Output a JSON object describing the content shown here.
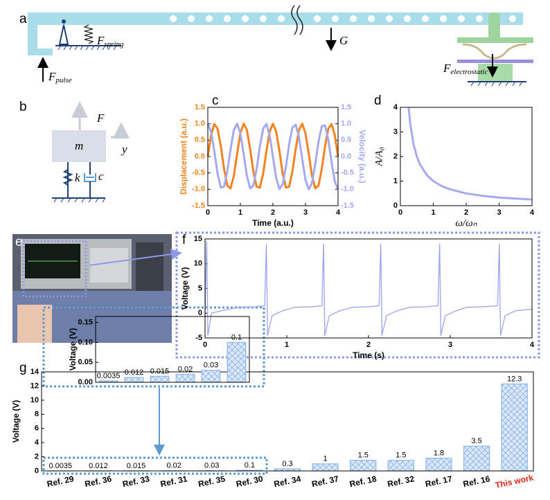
{
  "figure": {
    "panel_a": {
      "label": "a",
      "forces": [
        {
          "symbol": "F",
          "subscript": "spring"
        },
        {
          "symbol": "G"
        },
        {
          "symbol": "F",
          "subscript": "pulse"
        },
        {
          "symbol": "F",
          "subscript": "electrostatic"
        }
      ]
    },
    "panel_b": {
      "label": "b",
      "symbols": {
        "force": "F",
        "mass": "m",
        "displacement": "y",
        "stiffness": "k",
        "damping": "c"
      }
    },
    "panel_e": {
      "label": "e"
    }
  },
  "chart_data": [
    {
      "type": "line",
      "panel": "c",
      "xlabel": "Time (a.u.)",
      "ylabel": "Displacement (a.u.)",
      "y2label": "Velocity (a.u.)",
      "x": [
        0,
        0.1,
        0.2,
        0.3,
        0.4,
        0.5,
        0.6,
        0.7,
        0.8,
        0.9,
        1,
        1.1,
        1.2,
        1.3,
        1.4,
        1.5,
        1.6,
        1.7,
        1.8,
        1.9,
        2,
        2.1,
        2.2,
        2.3,
        2.4,
        2.5,
        2.6,
        2.7,
        2.8,
        2.9,
        3,
        3.1,
        3.2,
        3.3,
        3.4,
        3.5,
        3.6,
        3.7,
        3.8,
        3.9,
        4
      ],
      "series": [
        {
          "color": "#f5821f",
          "values": [
            0,
            0.65,
            0.99,
            0.85,
            0.31,
            -0.38,
            -0.89,
            -0.97,
            -0.59,
            0.08,
            0.71,
            1,
            0.81,
            0.23,
            -0.45,
            -0.92,
            -0.95,
            -0.52,
            0.16,
            0.76,
            1,
            0.76,
            0.16,
            -0.52,
            -0.95,
            -0.92,
            -0.45,
            0.23,
            0.81,
            1,
            0.71,
            0.08,
            -0.59,
            -0.97,
            -0.89,
            -0.38,
            0.31,
            0.85,
            0.99,
            0.65,
            0
          ]
        },
        {
          "color": "#a4a9f0",
          "axis": "y2",
          "values": [
            1,
            0.76,
            0.16,
            -0.52,
            -0.95,
            -0.92,
            -0.45,
            0.23,
            0.81,
            1,
            0.71,
            0.08,
            -0.59,
            -0.97,
            -0.89,
            -0.38,
            0.31,
            0.85,
            0.99,
            0.65,
            0,
            -0.65,
            -0.99,
            -0.85,
            -0.31,
            0.38,
            0.89,
            0.97,
            0.59,
            -0.08,
            -0.71,
            -1,
            -0.81,
            -0.23,
            0.45,
            0.92,
            0.95,
            0.52,
            -0.16,
            -0.76,
            -1
          ]
        }
      ],
      "xlim": [
        0,
        4
      ],
      "xticks": [
        0,
        1,
        2,
        3,
        4
      ],
      "ylim": [
        -1.5,
        1.5
      ],
      "yticks": [
        -1.5,
        {
          "value": -1,
          "label": "-1.0"
        },
        -0.5,
        {
          "value": 0,
          "label": "0.0"
        },
        0.5,
        {
          "value": 1,
          "label": "1.0"
        },
        1.5
      ],
      "y2lim": [
        -1.5,
        1.5
      ],
      "y2ticks": [
        -1.5,
        {
          "value": -1,
          "label": "-1.0"
        },
        -0.5,
        {
          "value": 0,
          "label": "0.0"
        },
        0.5,
        {
          "value": 1,
          "label": "1.0"
        },
        1.5
      ]
    },
    {
      "type": "line",
      "panel": "d",
      "xlabel": "ω/ωₙ",
      "ylabel": "A/A₀",
      "x": [
        0.25,
        0.3,
        0.4,
        0.5,
        0.6,
        0.8,
        1,
        1.25,
        1.5,
        2,
        2.5,
        3,
        3.5,
        4
      ],
      "series": [
        {
          "color": "#a4a9f0",
          "values": [
            4,
            3.33,
            2.5,
            2,
            1.67,
            1.25,
            1,
            0.8,
            0.67,
            0.5,
            0.4,
            0.33,
            0.29,
            0.25
          ]
        }
      ],
      "xlim": [
        0,
        4
      ],
      "xticks": [
        0,
        1,
        2,
        3,
        4
      ],
      "ylim": [
        0,
        4
      ],
      "yticks": [
        0,
        1,
        2,
        3,
        4
      ]
    },
    {
      "type": "line",
      "panel": "f",
      "xlabel": "Time (s)",
      "ylabel": "Voltage (V)",
      "x": [
        0,
        0.02,
        0.035,
        0.08,
        0.2,
        0.4,
        0.6,
        0.73,
        0.75,
        0.765,
        0.82,
        0.95,
        1.1,
        1.3,
        1.43,
        1.45,
        1.465,
        1.52,
        1.65,
        1.8,
        2,
        2.13,
        2.15,
        2.165,
        2.22,
        2.35,
        2.5,
        2.7,
        2.85,
        2.87,
        2.885,
        2.94,
        3.07,
        3.2,
        3.4,
        3.58,
        3.6,
        3.615,
        3.67,
        3.8,
        4
      ],
      "series": [
        {
          "color": "#9aa3ee",
          "values": [
            0,
            14.5,
            -4.5,
            0,
            0.5,
            1.2,
            1.3,
            1.5,
            14,
            -4.5,
            -0.5,
            0.5,
            1.2,
            1.3,
            1.5,
            14,
            -4.5,
            -0.5,
            0.5,
            1.2,
            1.3,
            1.5,
            14,
            -4.5,
            -0.5,
            0.5,
            1.2,
            1.3,
            1.5,
            14,
            -4.5,
            -0.5,
            0.5,
            1.2,
            1.3,
            1.5,
            14,
            -4.5,
            -0.5,
            0.5,
            0.8
          ]
        }
      ],
      "xlim": [
        0,
        4
      ],
      "xticks": [
        0,
        1,
        2,
        3,
        4
      ],
      "ylim": [
        -5,
        15
      ],
      "yticks": [
        -5,
        0,
        5,
        10,
        15
      ]
    },
    {
      "type": "bar",
      "panel": "g",
      "ylabel": "Voltage (V)",
      "categories": [
        "Ref. 29",
        "Ref. 36",
        "Ref. 33",
        "Ref. 31",
        "Ref. 35",
        "Ref. 30",
        "Ref. 34",
        "Ref. 37",
        "Ref. 18",
        "Ref. 32",
        "Ref. 17",
        "Ref. 16",
        "This work"
      ],
      "values": [
        0.0035,
        0.012,
        0.015,
        0.02,
        0.03,
        0.1,
        0.3,
        1,
        1.5,
        1.5,
        1.8,
        3.5,
        12.3
      ],
      "color": "#8fb8ec",
      "highlight_index": 12,
      "highlight_color": "#e0261b",
      "ylim": [
        0,
        14
      ],
      "yticks": [
        0,
        2,
        4,
        6,
        8,
        10,
        12,
        14
      ]
    },
    {
      "type": "bar",
      "ylabel": "Voltage (V)",
      "values": [
        0.0035,
        0.012,
        0.015,
        0.02,
        0.03,
        0.1
      ],
      "color": "#8fb8ec",
      "ylim": [
        0,
        0.165
      ],
      "yticks": [
        {
          "value": 0,
          "label": "0.00"
        },
        {
          "value": 0.05,
          "label": "0.05"
        },
        {
          "value": 0.1,
          "label": "0.10"
        },
        {
          "value": 0.15,
          "label": "0.15"
        }
      ]
    }
  ]
}
